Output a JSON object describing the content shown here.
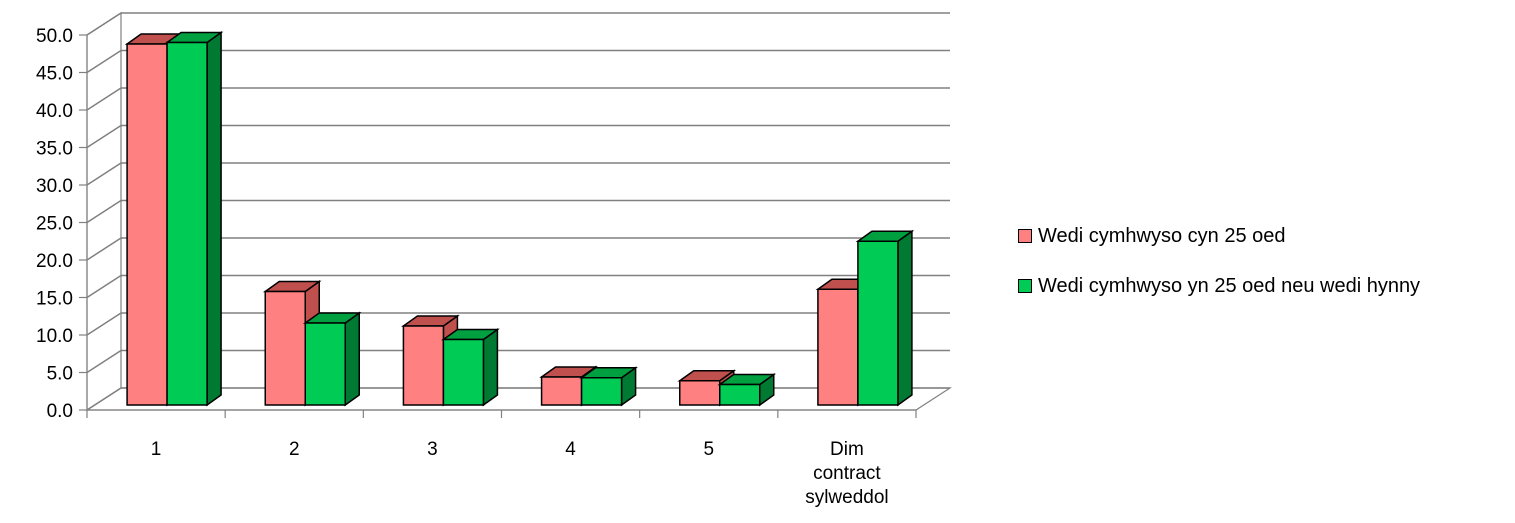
{
  "chart_data": {
    "type": "bar",
    "title": "",
    "xlabel": "",
    "ylabel": "",
    "categories": [
      "1",
      "2",
      "3",
      "4",
      "5",
      "Dim contract sylweddol"
    ],
    "series": [
      {
        "name": "Wedi cymhwyso cyn 25 oed",
        "values": [
          48.8,
          15.8,
          11.2,
          4.4,
          3.9,
          16.1
        ],
        "color": "#ff8080",
        "top_color": "#c0504d",
        "side_color": "#c0504d"
      },
      {
        "name": "Wedi cymhwyso yn 25 oed neu wedi hynny",
        "values": [
          49.0,
          11.6,
          9.4,
          4.3,
          3.4,
          22.5
        ],
        "color": "#00cc55",
        "top_color": "#00a040",
        "side_color": "#007a33"
      }
    ],
    "ylim": [
      0,
      50
    ],
    "yticks": [
      "0.0",
      "5.0",
      "10.0",
      "15.0",
      "20.0",
      "25.0",
      "30.0",
      "35.0",
      "40.0",
      "45.0",
      "50.0"
    ],
    "grid": true,
    "legend_position": "right",
    "three_d": true
  }
}
